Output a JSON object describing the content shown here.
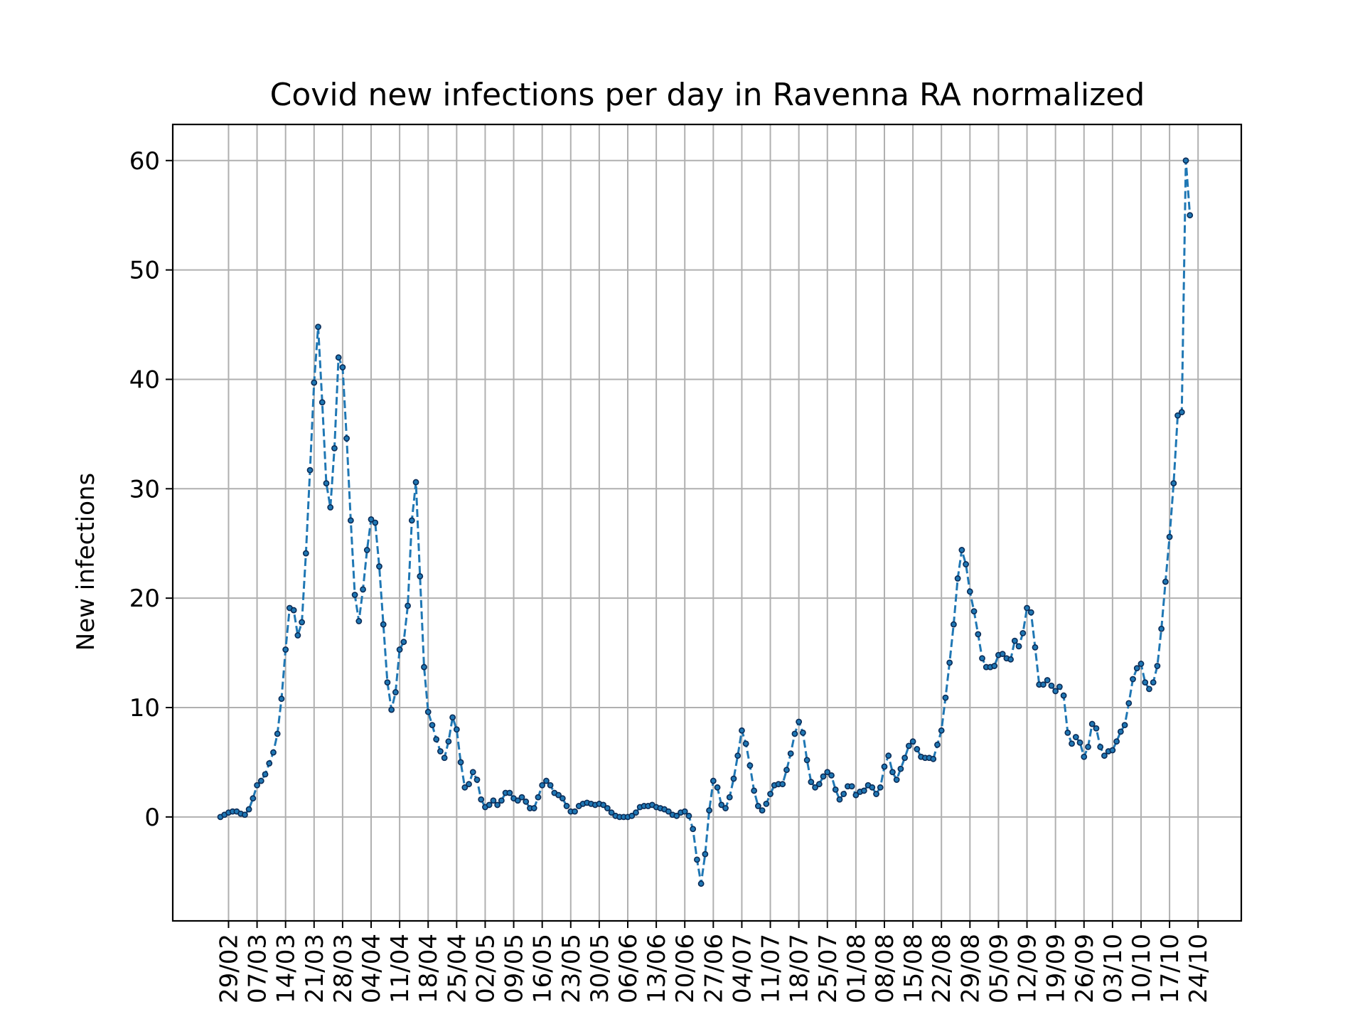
{
  "chart_data": {
    "type": "line",
    "title": "Covid new infections per day in Ravenna RA normalized",
    "xlabel": "",
    "ylabel": "New infections",
    "x_tick_labels": [
      "29/02",
      "07/03",
      "14/03",
      "21/03",
      "28/03",
      "04/04",
      "11/04",
      "18/04",
      "25/04",
      "02/05",
      "09/05",
      "16/05",
      "23/05",
      "30/05",
      "06/06",
      "13/06",
      "20/06",
      "27/06",
      "04/07",
      "11/07",
      "18/07",
      "25/07",
      "01/08",
      "08/08",
      "15/08",
      "22/08",
      "29/08",
      "05/09",
      "12/09",
      "19/09",
      "26/09",
      "03/10",
      "10/10",
      "17/10",
      "24/10"
    ],
    "y_ticks": [
      0,
      10,
      20,
      30,
      40,
      50,
      60
    ],
    "ylim": [
      -9.5,
      63.3
    ],
    "x_start_date": "27/02",
    "x_end_date": "25/10",
    "grid": true,
    "marker": "dot",
    "line_style": "dashed",
    "line_color": "#1f77b4",
    "series": [
      {
        "values": [
          0.0,
          0.2,
          0.4,
          0.5,
          0.5,
          0.3,
          0.2,
          0.7,
          1.7,
          2.9,
          3.3,
          3.9,
          4.9,
          5.9,
          7.6,
          10.8,
          15.3,
          19.1,
          18.9,
          16.6,
          17.8,
          24.1,
          31.7,
          39.7,
          44.8,
          37.9,
          30.5,
          28.3,
          33.7,
          42.0,
          41.1,
          34.6,
          27.1,
          20.3,
          17.9,
          20.8,
          24.4,
          27.2,
          26.9,
          22.9,
          17.6,
          12.3,
          9.8,
          11.4,
          15.3,
          16.0,
          19.3,
          27.1,
          30.6,
          22.0,
          13.7,
          9.6,
          8.4,
          7.1,
          6.0,
          5.4,
          6.9,
          9.1,
          8.0,
          5.0,
          2.7,
          3.0,
          4.1,
          3.4,
          1.6,
          0.9,
          1.1,
          1.5,
          1.1,
          1.5,
          2.2,
          2.2,
          1.7,
          1.5,
          1.8,
          1.4,
          0.8,
          0.8,
          1.8,
          2.9,
          3.3,
          2.9,
          2.2,
          2.0,
          1.7,
          1.0,
          0.5,
          0.5,
          1.0,
          1.2,
          1.3,
          1.2,
          1.1,
          1.2,
          1.1,
          0.8,
          0.4,
          0.1,
          0.0,
          0.0,
          0.0,
          0.1,
          0.4,
          0.9,
          1.0,
          1.0,
          1.1,
          0.9,
          0.8,
          0.7,
          0.5,
          0.2,
          0.1,
          0.4,
          0.5,
          0.1,
          -1.1,
          -3.9,
          -6.1,
          -3.4,
          0.6,
          3.3,
          2.7,
          1.1,
          0.8,
          1.8,
          3.5,
          5.6,
          7.9,
          6.7,
          4.7,
          2.4,
          1.0,
          0.6,
          1.2,
          2.1,
          2.9,
          3.0,
          3.0,
          4.3,
          5.8,
          7.6,
          8.7,
          7.7,
          5.2,
          3.2,
          2.7,
          3.0,
          3.7,
          4.1,
          3.8,
          2.5,
          1.6,
          2.1,
          2.8,
          2.8,
          2.0,
          2.3,
          2.4,
          2.9,
          2.7,
          2.1,
          2.7,
          4.6,
          5.6,
          4.1,
          3.4,
          4.4,
          5.4,
          6.5,
          6.9,
          6.2,
          5.5,
          5.4,
          5.4,
          5.3,
          6.6,
          7.9,
          10.9,
          14.1,
          17.6,
          21.8,
          24.4,
          23.1,
          20.6,
          18.8,
          16.7,
          14.5,
          13.7,
          13.7,
          13.8,
          14.8,
          14.9,
          14.5,
          14.4,
          16.1,
          15.6,
          16.8,
          19.1,
          18.7,
          15.5,
          12.1,
          12.1,
          12.5,
          12.0,
          11.5,
          11.9,
          11.1,
          7.7,
          6.7,
          7.3,
          6.8,
          5.5,
          6.4,
          8.5,
          8.1,
          6.4,
          5.6,
          6.0,
          6.1,
          6.9,
          7.8,
          8.4,
          10.4,
          12.6,
          13.6,
          14.0,
          12.3,
          11.7,
          12.3,
          13.8,
          17.2,
          21.5,
          25.6,
          30.5,
          36.7,
          37.0,
          60.0,
          55.0
        ]
      }
    ]
  }
}
